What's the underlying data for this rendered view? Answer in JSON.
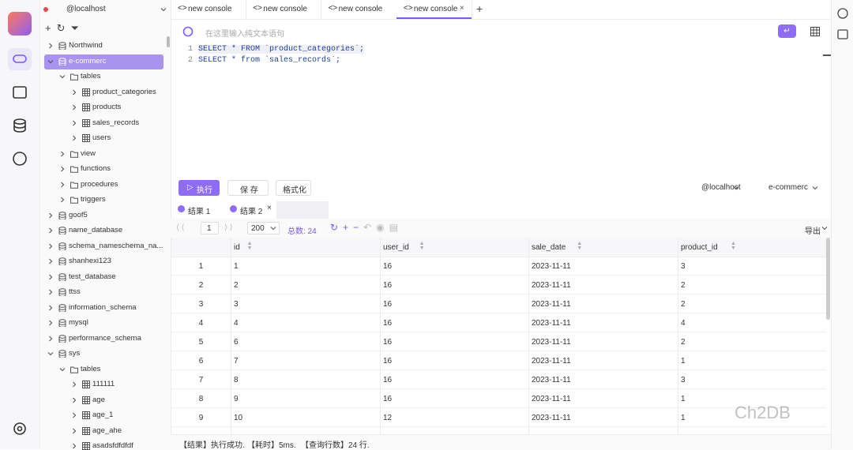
{
  "sidebar": {
    "connection": "@localhost",
    "tree": [
      {
        "label": "Northwind",
        "level": 0,
        "kind": "db",
        "expanded": false
      },
      {
        "label": "e-commerc",
        "level": 0,
        "kind": "db",
        "expanded": true,
        "selected": true
      },
      {
        "label": "tables",
        "level": 1,
        "kind": "folder",
        "expanded": true
      },
      {
        "label": "product_categories",
        "level": 2,
        "kind": "table",
        "expanded": false
      },
      {
        "label": "products",
        "level": 2,
        "kind": "table",
        "expanded": false
      },
      {
        "label": "sales_records",
        "level": 2,
        "kind": "table",
        "expanded": false
      },
      {
        "label": "users",
        "level": 2,
        "kind": "table",
        "expanded": false
      },
      {
        "label": "view",
        "level": 1,
        "kind": "folder",
        "expanded": false
      },
      {
        "label": "functions",
        "level": 1,
        "kind": "folder",
        "expanded": false
      },
      {
        "label": "procedures",
        "level": 1,
        "kind": "folder",
        "expanded": false
      },
      {
        "label": "triggers",
        "level": 1,
        "kind": "folder",
        "expanded": false
      },
      {
        "label": "goof5",
        "level": 0,
        "kind": "db",
        "expanded": false
      },
      {
        "label": "name_database",
        "level": 0,
        "kind": "db",
        "expanded": false
      },
      {
        "label": "schema_nameschema_na...",
        "level": 0,
        "kind": "db",
        "expanded": false
      },
      {
        "label": "shanhexi123",
        "level": 0,
        "kind": "db",
        "expanded": false
      },
      {
        "label": "test_database",
        "level": 0,
        "kind": "db",
        "expanded": false
      },
      {
        "label": "ttss",
        "level": 0,
        "kind": "db",
        "expanded": false
      },
      {
        "label": "information_schema",
        "level": 0,
        "kind": "db",
        "expanded": false
      },
      {
        "label": "mysql",
        "level": 0,
        "kind": "db",
        "expanded": false
      },
      {
        "label": "performance_schema",
        "level": 0,
        "kind": "db",
        "expanded": false
      },
      {
        "label": "sys",
        "level": 0,
        "kind": "db",
        "expanded": true
      },
      {
        "label": "tables",
        "level": 1,
        "kind": "folder",
        "expanded": true
      },
      {
        "label": "111111",
        "level": 2,
        "kind": "table",
        "expanded": false
      },
      {
        "label": "age",
        "level": 2,
        "kind": "table",
        "expanded": false
      },
      {
        "label": "age_1",
        "level": 2,
        "kind": "table",
        "expanded": false
      },
      {
        "label": "age_ahe",
        "level": 2,
        "kind": "table",
        "expanded": false
      },
      {
        "label": "asadsfdfdfdf",
        "level": 2,
        "kind": "table",
        "expanded": false
      }
    ]
  },
  "tabs": [
    "new console",
    "new console",
    "new console",
    "new console"
  ],
  "editor": {
    "placeholder": "在这里输入纯文本语句",
    "lines": [
      {
        "number": 1,
        "text": "SELECT * FROM `product_categories`;"
      },
      {
        "number": 2,
        "text": "SELECT * from `sales_records`;"
      }
    ]
  },
  "actions": {
    "run": "执行",
    "save": "保 存",
    "format": "格式化",
    "connection": "@localhost",
    "database": "e-commerc"
  },
  "results": {
    "tabs": [
      "结果 1",
      "结果 2"
    ],
    "page": "1",
    "page_size": "200",
    "total": "总数: 24",
    "export": "导出",
    "columns": [
      "id",
      "user_id",
      "sale_date",
      "product_id"
    ],
    "rows": [
      [
        "1",
        "1",
        "16",
        "2023-11-11",
        "3"
      ],
      [
        "2",
        "2",
        "16",
        "2023-11-11",
        "2"
      ],
      [
        "3",
        "3",
        "16",
        "2023-11-11",
        "2"
      ],
      [
        "4",
        "4",
        "16",
        "2023-11-11",
        "4"
      ],
      [
        "5",
        "6",
        "16",
        "2023-11-11",
        "2"
      ],
      [
        "6",
        "7",
        "16",
        "2023-11-11",
        "1"
      ],
      [
        "7",
        "8",
        "16",
        "2023-11-11",
        "3"
      ],
      [
        "8",
        "9",
        "16",
        "2023-11-11",
        "1"
      ],
      [
        "9",
        "10",
        "12",
        "2023-11-11",
        "1"
      ]
    ]
  },
  "status": [
    "【结果】执行成功.",
    "【耗时】5ms.",
    "【查询行数】24 行."
  ],
  "watermark": "Ch2DB"
}
